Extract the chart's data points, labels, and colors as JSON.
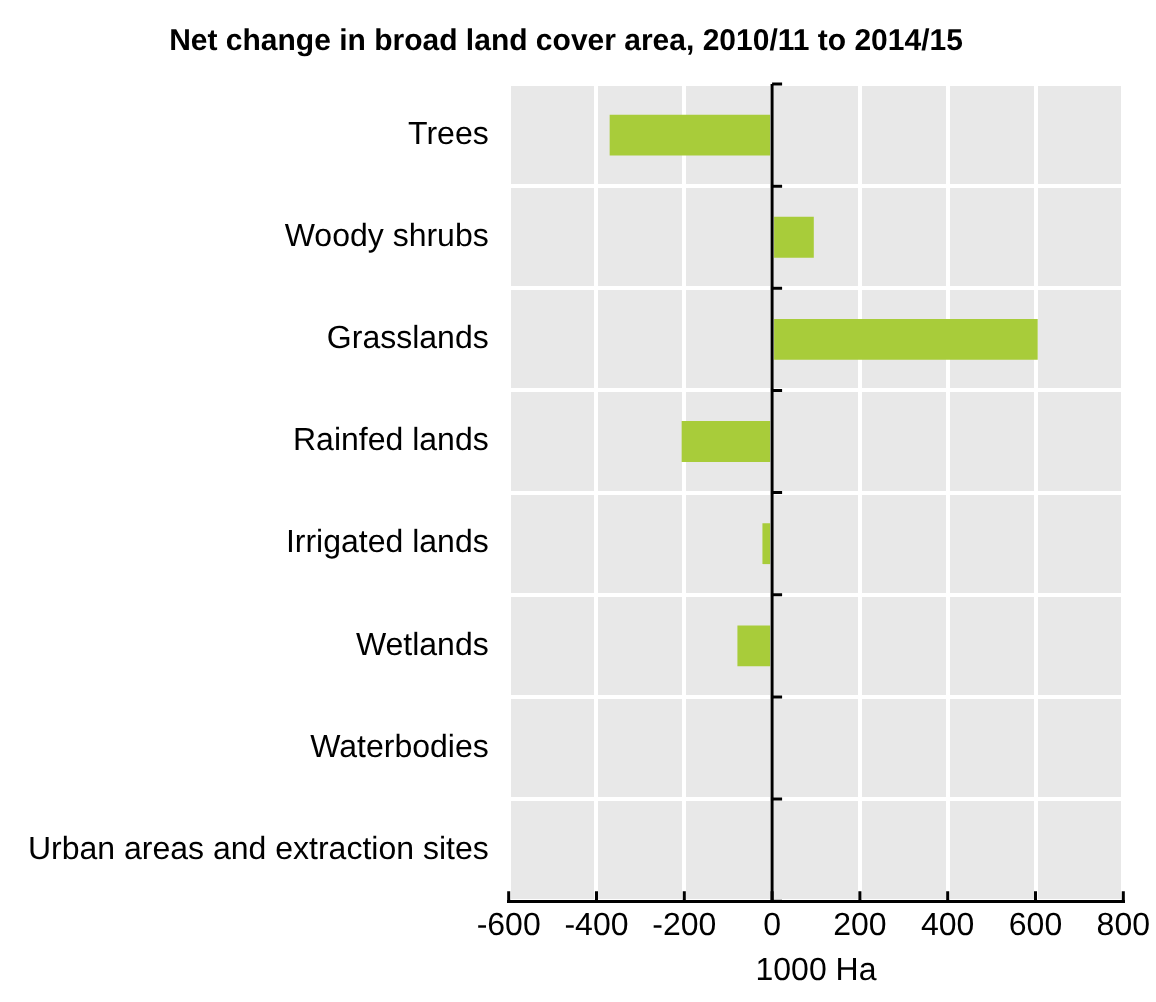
{
  "chart_data": {
    "type": "bar",
    "orientation": "horizontal",
    "title": "Net change in broad land cover area, 2010/11 to 2014/15",
    "xlabel": "1000 Ha",
    "categories": [
      "Trees",
      "Woody shrubs",
      "Grasslands",
      "Rainfed lands",
      "Irrigated lands",
      "Wetlands",
      "Waterbodies",
      "Urban areas and extraction sites"
    ],
    "values": [
      -370,
      95,
      605,
      -206,
      -22,
      -79,
      0,
      0
    ],
    "color": "#a8cc3a",
    "xlim": [
      -600,
      800
    ],
    "xticks": [
      -600,
      -400,
      -200,
      0,
      200,
      400,
      600,
      800
    ],
    "grid": true,
    "legend": false
  }
}
